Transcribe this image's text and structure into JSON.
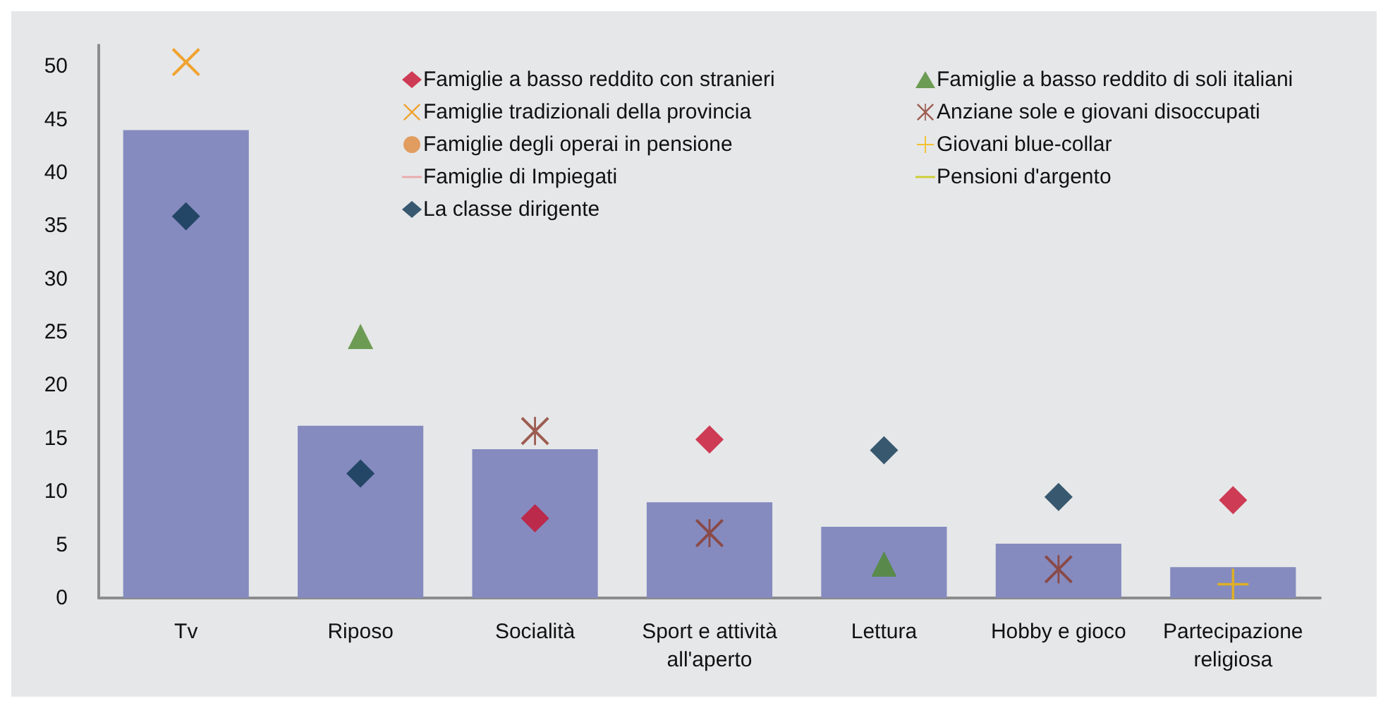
{
  "chart_data": {
    "type": "bar",
    "categories": [
      "Tv",
      "Riposo",
      "Socialità",
      "Sport e attività\nall'aperto",
      "Lettura",
      "Hobby e gioco",
      "Partecipazione\nreligiosa"
    ],
    "series": [
      {
        "color": "#858bbf",
        "values": [
          44,
          16.2,
          14,
          9,
          6.7,
          5.1,
          2.9
        ]
      },
      {
        "type": "scatter",
        "name": "Famiglie a basso reddito con stranieri",
        "color": "#c8102e",
        "marker": "diamond",
        "values": [
          null,
          null,
          7.5,
          14.9,
          null,
          null,
          9.2
        ]
      },
      {
        "type": "scatter",
        "name": "Famiglie tradizionali della provincia",
        "color": "#f39200",
        "marker": "cross",
        "values": [
          50.4,
          null,
          null,
          null,
          null,
          null,
          null
        ]
      },
      {
        "type": "scatter",
        "name": "Famiglie degli operai in pensione",
        "color": "#e08a3c",
        "marker": "circle",
        "values": [
          null,
          null,
          null,
          null,
          null,
          null,
          null
        ]
      },
      {
        "type": "scatter",
        "name": "Famiglie di Impiegati",
        "color": "#e89a9a",
        "marker": "dash",
        "values": [
          null,
          null,
          null,
          null,
          null,
          null,
          null
        ]
      },
      {
        "type": "scatter",
        "name": "La classe dirigente",
        "color": "#0b3550",
        "marker": "diamond",
        "values": [
          35.9,
          11.7,
          null,
          null,
          13.9,
          9.5,
          null
        ]
      },
      {
        "type": "scatter",
        "name": "Famiglie a basso reddito di soli italiani",
        "color": "#4e8a2e",
        "marker": "triangle",
        "values": [
          null,
          24.6,
          null,
          null,
          3.2,
          null,
          null
        ]
      },
      {
        "type": "scatter",
        "name": "Anziane sole e giovani disoccupati",
        "color": "#8b3a2a",
        "marker": "star",
        "values": [
          null,
          null,
          15.7,
          6.1,
          null,
          2.7,
          null
        ]
      },
      {
        "type": "scatter",
        "name": "Giovani blue-collar",
        "color": "#f5b800",
        "marker": "plus",
        "values": [
          null,
          null,
          null,
          null,
          null,
          null,
          1.3
        ]
      },
      {
        "type": "scatter",
        "name": "Pensioni d'argento",
        "color": "#c8c800",
        "marker": "dash",
        "values": [
          null,
          null,
          null,
          null,
          null,
          null,
          null
        ]
      }
    ],
    "ylim": [
      0,
      52
    ],
    "yticks": [
      0,
      5,
      10,
      15,
      20,
      25,
      30,
      35,
      40,
      45,
      50
    ],
    "grid": false,
    "legend": "top right"
  }
}
